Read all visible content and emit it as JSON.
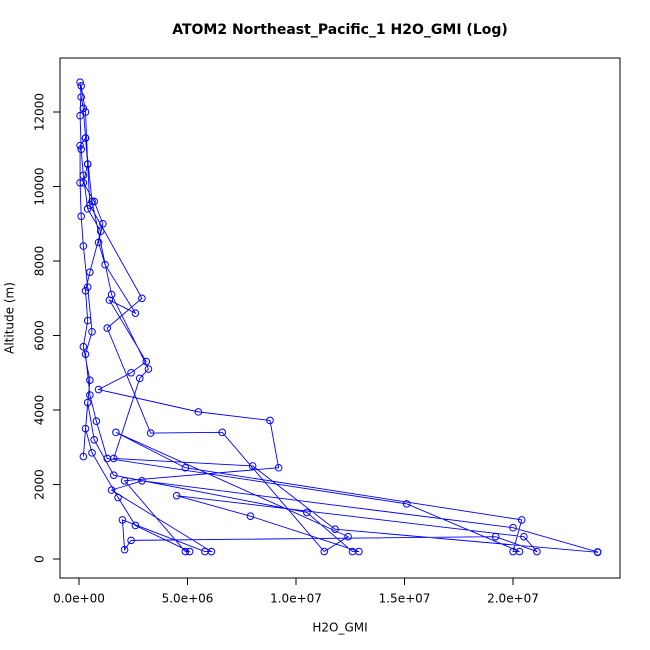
{
  "chart_data": {
    "type": "line",
    "markers": true,
    "color": "#0000ff",
    "title": "ATOM2 Northeast_Pacific_1 H2O_GMI (Log)",
    "x_label": "H2O_GMI",
    "y_label": "Altitude (m)",
    "xlim": [
      -876000,
      24930000
    ],
    "ylim": [
      -510,
      13450
    ],
    "xticks": [
      {
        "value": 0,
        "label": "0.0e+00"
      },
      {
        "value": 5000000,
        "label": "5.0e+06"
      },
      {
        "value": 10000000,
        "label": "1.0e+07"
      },
      {
        "value": 15000000,
        "label": "1.5e+07"
      },
      {
        "value": 20000000,
        "label": "2.0e+07"
      }
    ],
    "yticks": [
      0,
      2000,
      4000,
      6000,
      8000,
      10000,
      12000
    ],
    "x": [
      50000,
      100000,
      200000,
      300000,
      400000,
      200000,
      700000,
      1100000,
      900000,
      1200000,
      2600000,
      1400000,
      3100000,
      2400000,
      900000,
      5500000,
      8800000,
      9200000,
      2100000,
      4900000,
      5100000,
      2600000,
      1800000,
      600000,
      300000,
      500000,
      200000,
      400000,
      300000,
      500000,
      1000000,
      400000,
      200000,
      100000,
      50000,
      100000,
      300000,
      400000,
      500000,
      2900000,
      1300000,
      3300000,
      6600000,
      11300000,
      12400000,
      1700000,
      4900000,
      20400000,
      20000000,
      20300000,
      15100000,
      1300000,
      800000,
      500000,
      300000,
      600000,
      400000,
      200000,
      100000,
      50000,
      50000,
      300000,
      600000,
      1500000,
      3200000,
      2800000,
      1600000,
      8000000,
      11800000,
      23900000,
      23900000,
      20000000,
      2900000,
      1500000,
      6100000,
      5800000,
      2000000,
      2100000,
      2400000,
      19200000,
      21100000,
      20500000,
      4500000,
      7900000,
      12900000,
      12600000,
      10500000,
      1600000,
      700000,
      400000,
      200000
    ],
    "y": [
      12800,
      12400,
      12100,
      11300,
      10600,
      10100,
      9600,
      9000,
      8500,
      7900,
      6600,
      6950,
      5300,
      5000,
      4550,
      3950,
      3720,
      2450,
      2100,
      200,
      200,
      900,
      1650,
      2850,
      3500,
      4800,
      5700,
      6400,
      7200,
      7700,
      8800,
      9400,
      10300,
      11000,
      11900,
      12700,
      12000,
      10600,
      9500,
      7000,
      6200,
      3380,
      3400,
      200,
      600,
      3400,
      2450,
      1050,
      200,
      200,
      1480,
      2700,
      3700,
      4400,
      5500,
      6100,
      7300,
      8400,
      9200,
      10100,
      11100,
      11300,
      9600,
      7100,
      5100,
      4850,
      2700,
      2500,
      800,
      180,
      190,
      840,
      2100,
      1850,
      200,
      200,
      1050,
      250,
      500,
      600,
      200,
      600,
      1700,
      1150,
      200,
      200,
      1250,
      2250,
      3200,
      4200,
      2750
    ]
  }
}
